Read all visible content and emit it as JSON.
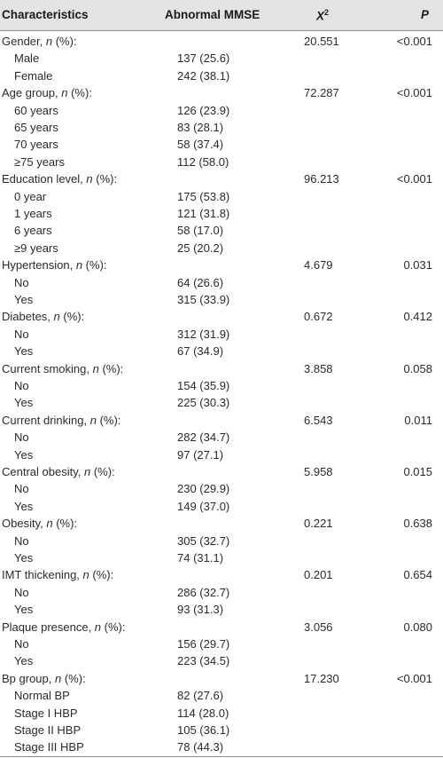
{
  "header": {
    "characteristics": "Characteristics",
    "abnormal_mmse": "Abnormal MMSE",
    "x2_base": "X",
    "x2_sup": "2",
    "p": "P"
  },
  "rows": [
    {
      "group": true,
      "label": "Gender, ",
      "n": "n",
      "pct": " (%):",
      "mmse": "",
      "x2": "20.551",
      "p": "<0.001"
    },
    {
      "group": false,
      "label": "Male",
      "mmse": "137 (25.6)",
      "x2": "",
      "p": ""
    },
    {
      "group": false,
      "label": "Female",
      "mmse": "242 (38.1)",
      "x2": "",
      "p": ""
    },
    {
      "group": true,
      "label": "Age group, ",
      "n": "n",
      "pct": " (%):",
      "mmse": "",
      "x2": "72.287",
      "p": "<0.001"
    },
    {
      "group": false,
      "label": "60 years",
      "mmse": "126 (23.9)",
      "x2": "",
      "p": ""
    },
    {
      "group": false,
      "label": "65 years",
      "mmse": "83 (28.1)",
      "x2": "",
      "p": ""
    },
    {
      "group": false,
      "label": "70 years",
      "mmse": "58 (37.4)",
      "x2": "",
      "p": ""
    },
    {
      "group": false,
      "label": "≥75 years",
      "mmse": "112 (58.0)",
      "x2": "",
      "p": ""
    },
    {
      "group": true,
      "label": "Education level, ",
      "n": "n",
      "pct": " (%):",
      "mmse": "",
      "x2": "96.213",
      "p": "<0.001"
    },
    {
      "group": false,
      "label": "0 year",
      "mmse": "175 (53.8)",
      "x2": "",
      "p": ""
    },
    {
      "group": false,
      "label": "1 years",
      "mmse": "121 (31.8)",
      "x2": "",
      "p": ""
    },
    {
      "group": false,
      "label": "6 years",
      "mmse": "58 (17.0)",
      "x2": "",
      "p": ""
    },
    {
      "group": false,
      "label": "≥9 years",
      "mmse": "25 (20.2)",
      "x2": "",
      "p": ""
    },
    {
      "group": true,
      "label": "Hypertension, ",
      "n": "n",
      "pct": " (%):",
      "mmse": "",
      "x2": "4.679",
      "p": "0.031"
    },
    {
      "group": false,
      "label": "No",
      "mmse": "64 (26.6)",
      "x2": "",
      "p": ""
    },
    {
      "group": false,
      "label": "Yes",
      "mmse": "315 (33.9)",
      "x2": "",
      "p": ""
    },
    {
      "group": true,
      "label": "Diabetes, ",
      "n": "n",
      "pct": " (%):",
      "mmse": "",
      "x2": "0.672",
      "p": "0.412"
    },
    {
      "group": false,
      "label": "No",
      "mmse": "312 (31.9)",
      "x2": "",
      "p": ""
    },
    {
      "group": false,
      "label": "Yes",
      "mmse": "67 (34.9)",
      "x2": "",
      "p": ""
    },
    {
      "group": true,
      "label": "Current smoking, ",
      "n": "n",
      "pct": " (%):",
      "mmse": "",
      "x2": "3.858",
      "p": "0.058"
    },
    {
      "group": false,
      "label": "No",
      "mmse": "154 (35.9)",
      "x2": "",
      "p": ""
    },
    {
      "group": false,
      "label": "Yes",
      "mmse": "225 (30.3)",
      "x2": "",
      "p": ""
    },
    {
      "group": true,
      "label": "Current drinking, ",
      "n": "n",
      "pct": " (%):",
      "mmse": "",
      "x2": "6.543",
      "p": "0.011"
    },
    {
      "group": false,
      "label": "No",
      "mmse": "282 (34.7)",
      "x2": "",
      "p": ""
    },
    {
      "group": false,
      "label": "Yes",
      "mmse": "97 (27.1)",
      "x2": "",
      "p": ""
    },
    {
      "group": true,
      "label": "Central obesity, ",
      "n": "n",
      "pct": " (%):",
      "mmse": "",
      "x2": "5.958",
      "p": "0.015"
    },
    {
      "group": false,
      "label": "No",
      "mmse": "230 (29.9)",
      "x2": "",
      "p": ""
    },
    {
      "group": false,
      "label": "Yes",
      "mmse": "149 (37.0)",
      "x2": "",
      "p": ""
    },
    {
      "group": true,
      "label": "Obesity, ",
      "n": "n",
      "pct": " (%):",
      "mmse": "",
      "x2": "0.221",
      "p": "0.638"
    },
    {
      "group": false,
      "label": "No",
      "mmse": "305 (32.7)",
      "x2": "",
      "p": ""
    },
    {
      "group": false,
      "label": "Yes",
      "mmse": "74 (31.1)",
      "x2": "",
      "p": ""
    },
    {
      "group": true,
      "label": "IMT thickening, ",
      "n": "n",
      "pct": " (%):",
      "mmse": "",
      "x2": "0.201",
      "p": "0.654"
    },
    {
      "group": false,
      "label": "No",
      "mmse": "286 (32.7)",
      "x2": "",
      "p": ""
    },
    {
      "group": false,
      "label": "Yes",
      "mmse": "93 (31.3)",
      "x2": "",
      "p": ""
    },
    {
      "group": true,
      "label": "Plaque presence, ",
      "n": "n",
      "pct": " (%):",
      "mmse": "",
      "x2": "3.056",
      "p": "0.080"
    },
    {
      "group": false,
      "label": "No",
      "mmse": "156 (29.7)",
      "x2": "",
      "p": ""
    },
    {
      "group": false,
      "label": "Yes",
      "mmse": "223 (34.5)",
      "x2": "",
      "p": ""
    },
    {
      "group": true,
      "label": "Bp group, ",
      "n": "n",
      "pct": " (%):",
      "mmse": "",
      "x2": "17.230",
      "p": "<0.001"
    },
    {
      "group": false,
      "label": "Normal BP",
      "mmse": "82 (27.6)",
      "x2": "",
      "p": ""
    },
    {
      "group": false,
      "label": "Stage I HBP",
      "mmse": "114 (28.0)",
      "x2": "",
      "p": ""
    },
    {
      "group": false,
      "label": "Stage II HBP",
      "mmse": "105 (36.1)",
      "x2": "",
      "p": ""
    },
    {
      "group": false,
      "label": "Stage III HBP",
      "mmse": "78 (44.3)",
      "x2": "",
      "p": ""
    }
  ]
}
